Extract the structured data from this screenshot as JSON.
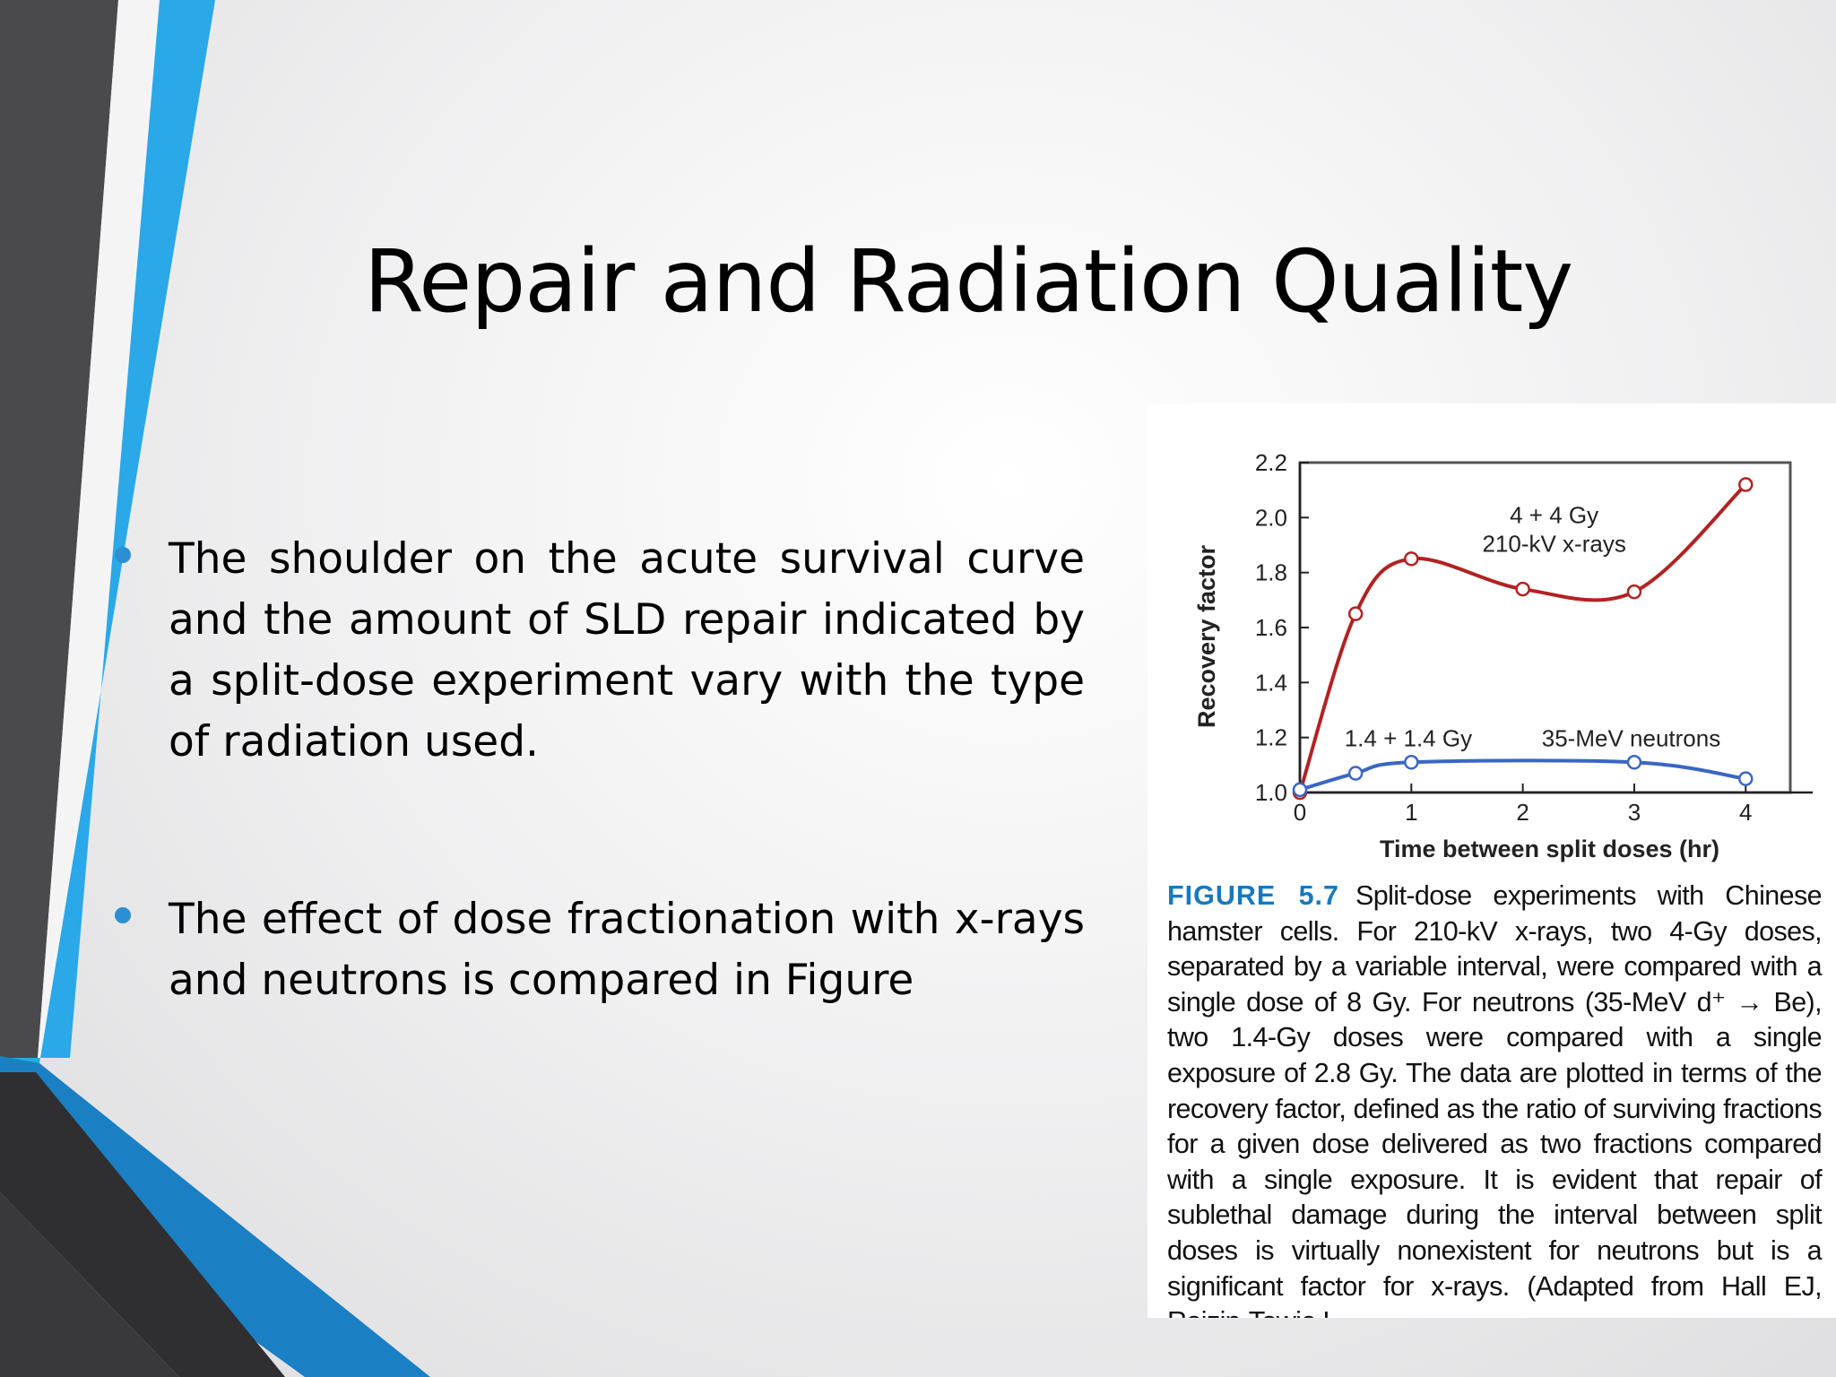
{
  "slide": {
    "title": "Repair and Radiation Quality",
    "bullets": [
      "The shoulder on the acute survival curve and the amount of SLD repair indicated by a split-dose experiment vary with the type of radiation used.",
      "The effect of dose fractionation with x-rays and neutrons is compared in Figure"
    ],
    "colors": {
      "accent_blue": "#2aa8e8",
      "dark_gray": "#404042",
      "bullet": "#2a8fd3"
    }
  },
  "figure": {
    "label": "FIGURE 5.7",
    "caption": "Split-dose experiments with Chinese hamster cells. For 210-kV x-rays, two 4-Gy doses, separated by a variable interval, were compared with a single dose of 8 Gy. For neutrons (35-MeV d⁺ → Be), two 1.4-Gy doses were compared with a single exposure of 2.8 Gy. The data are plotted in terms of the recovery factor, defined as the ratio of surviving fractions for a given dose delivered as two fractions compared with a single exposure. It is evident that repair of sublethal damage during the interval between split doses is virtually nonexistent for neutrons but is a significant factor for x-rays. (Adapted from Hall EJ, Roizin-Towie L,"
  },
  "chart_data": {
    "type": "line",
    "xlabel": "Time between split doses (hr)",
    "ylabel": "Recovery factor",
    "xlim": [
      0,
      4.4
    ],
    "ylim": [
      1.0,
      2.2
    ],
    "xticks": [
      "0",
      "1",
      "2",
      "3",
      "4"
    ],
    "yticks": [
      "1.0",
      "1.2",
      "1.4",
      "1.6",
      "1.8",
      "2.0",
      "2.2"
    ],
    "grid": false,
    "series": [
      {
        "name": "4 + 4 Gy 210-kV x-rays",
        "label_lines": [
          "4 + 4 Gy",
          "210-kV x-rays"
        ],
        "color": "#b22222",
        "x": [
          0,
          0.5,
          1,
          2,
          3,
          4
        ],
        "y": [
          1.0,
          1.65,
          1.85,
          1.74,
          1.73,
          2.12
        ]
      },
      {
        "name": "1.4 + 1.4 Gy 35-MeV neutrons",
        "label_lines": [
          "1.4 + 1.4 Gy",
          "35-MeV neutrons"
        ],
        "color": "#3a66c4",
        "x": [
          0,
          0.5,
          1,
          3,
          4
        ],
        "y": [
          1.01,
          1.07,
          1.11,
          1.11,
          1.05
        ]
      }
    ]
  }
}
